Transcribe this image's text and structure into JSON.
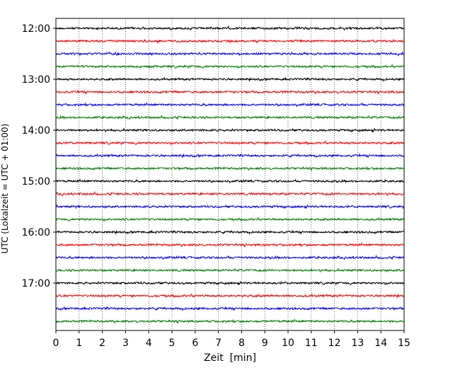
{
  "chart_data": {
    "type": "line",
    "title": "",
    "xlabel": "Zeit  [min]",
    "ylabel": "UTC (Lokalzeit = UTC + 01:00)",
    "xlim": [
      0,
      15
    ],
    "x_ticks": [
      "0",
      "1",
      "2",
      "3",
      "4",
      "5",
      "6",
      "7",
      "8",
      "9",
      "10",
      "11",
      "12",
      "13",
      "14",
      "15"
    ],
    "y_ticks": [
      "12:00",
      "13:00",
      "14:00",
      "15:00",
      "16:00",
      "17:00"
    ],
    "grid": "vertical-dotted",
    "trace_interval_minutes": 15,
    "start_time": "12:00",
    "trace_colors": [
      "#000000",
      "#ff0000",
      "#0000ff",
      "#008000"
    ],
    "traces": [
      {
        "time": "12:00",
        "color": "#000000"
      },
      {
        "time": "12:15",
        "color": "#ff0000"
      },
      {
        "time": "12:30",
        "color": "#0000ff"
      },
      {
        "time": "12:45",
        "color": "#008000"
      },
      {
        "time": "13:00",
        "color": "#000000"
      },
      {
        "time": "13:15",
        "color": "#ff0000"
      },
      {
        "time": "13:30",
        "color": "#0000ff"
      },
      {
        "time": "13:45",
        "color": "#008000"
      },
      {
        "time": "14:00",
        "color": "#000000"
      },
      {
        "time": "14:15",
        "color": "#ff0000"
      },
      {
        "time": "14:30",
        "color": "#0000ff"
      },
      {
        "time": "14:45",
        "color": "#008000"
      },
      {
        "time": "15:00",
        "color": "#000000"
      },
      {
        "time": "15:15",
        "color": "#ff0000"
      },
      {
        "time": "15:30",
        "color": "#0000ff"
      },
      {
        "time": "15:45",
        "color": "#008000"
      },
      {
        "time": "16:00",
        "color": "#000000"
      },
      {
        "time": "16:15",
        "color": "#ff0000"
      },
      {
        "time": "16:30",
        "color": "#0000ff"
      },
      {
        "time": "16:45",
        "color": "#008000"
      },
      {
        "time": "17:00",
        "color": "#000000"
      },
      {
        "time": "17:15",
        "color": "#ff0000"
      },
      {
        "time": "17:30",
        "color": "#0000ff"
      },
      {
        "time": "17:45",
        "color": "#008000"
      }
    ]
  }
}
